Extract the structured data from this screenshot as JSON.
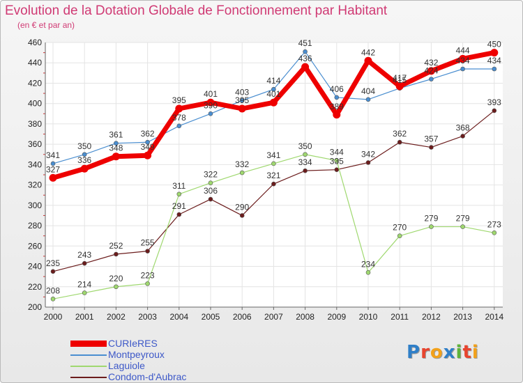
{
  "header": {
    "title": "Evolution de la Dotation Globale de Fonctionnement par Habitant",
    "subtitle": "(en € et par an)"
  },
  "brand": {
    "letters": [
      "P",
      "r",
      "o",
      "x",
      "i",
      "t",
      "i"
    ],
    "colors": [
      "#2f7fc8",
      "#e8442e",
      "#f2a11a",
      "#2f7fc8",
      "#5fb33a",
      "#e8442e",
      "#f2a11a"
    ]
  },
  "chart_data": {
    "type": "line",
    "title": "Evolution de la Dotation Globale de Fonctionnement par Habitant",
    "subtitle": "(en € et par an)",
    "x": [
      "2000",
      "2001",
      "2002",
      "2003",
      "2004",
      "2005",
      "2006",
      "2007",
      "2008",
      "2009",
      "2010",
      "2011",
      "2012",
      "2013",
      "2014"
    ],
    "y_ticks": [
      "200",
      "220",
      "240",
      "260",
      "280",
      "300",
      "320",
      "340",
      "360",
      "380",
      "400",
      "420",
      "440",
      "460"
    ],
    "ylim": [
      200,
      460
    ],
    "grid": true,
    "legend_position": "bottom-left",
    "series": [
      {
        "name": "Condom-d'Aubrac",
        "color": "#6b1c1c",
        "values": [
          235,
          243,
          252,
          255,
          291,
          306,
          290,
          321,
          334,
          335,
          342,
          362,
          357,
          368,
          393
        ],
        "labels": [
          "235",
          "243",
          "252",
          "255",
          "291",
          "306",
          "290",
          "321",
          "334",
          "335",
          "342",
          "362",
          "357",
          "368",
          "393"
        ]
      },
      {
        "name": "Laguiole",
        "color": "#9fd86f",
        "values": [
          208,
          214,
          220,
          223,
          311,
          322,
          332,
          341,
          350,
          344,
          234,
          270,
          279,
          279,
          273
        ],
        "labels": [
          "208",
          "214",
          "220",
          "223",
          "311",
          "322",
          "332",
          "341",
          "350",
          "344",
          "234",
          "270",
          "279",
          "279",
          "273"
        ]
      },
      {
        "name": "Montpeyroux",
        "color": "#4a8ed0",
        "values": [
          341,
          350,
          361,
          362,
          378,
          390,
          403,
          414,
          451,
          406,
          404,
          415,
          424,
          434,
          434
        ],
        "labels": [
          "341",
          "350",
          "361",
          "362",
          "378",
          "390",
          "403",
          "414",
          "451",
          "406",
          "404",
          "415",
          "424",
          "434",
          "434"
        ]
      },
      {
        "name": "CURIeRES",
        "color": "#ee0000",
        "values": [
          327,
          336,
          348,
          349,
          395,
          401,
          395,
          401,
          436,
          389,
          442,
          417,
          432,
          444,
          450
        ],
        "labels": [
          "327",
          "336",
          "348",
          "349",
          "395",
          "401",
          "395",
          "401",
          "436",
          "389",
          "442",
          "417",
          "432",
          "444",
          "450"
        ]
      }
    ],
    "legend": [
      "CURIeRES",
      "Montpeyroux",
      "Laguiole",
      "Condom-d'Aubrac"
    ]
  }
}
